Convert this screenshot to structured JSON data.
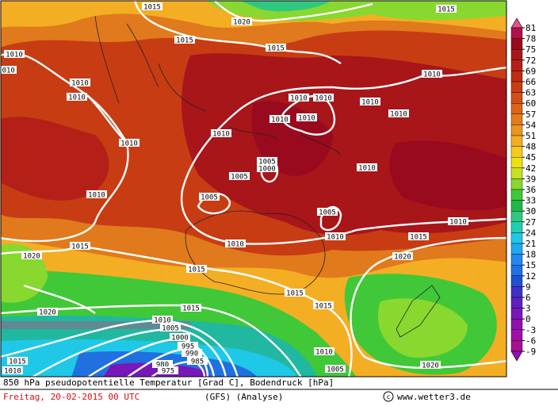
{
  "map": {
    "isobar_labels": [
      1015,
      1020,
      1015,
      1015,
      1015,
      1010,
      1010,
      1010,
      1010,
      1010,
      1010,
      1010,
      1010,
      1010,
      1010,
      1010,
      1010,
      1010,
      1005,
      1000,
      1005,
      1010,
      1005,
      1010,
      1005,
      1010,
      1010,
      1015,
      1015,
      1010,
      1020,
      1020,
      1015,
      1015,
      1015,
      1020,
      1015,
      1010,
      1005,
      1000,
      995,
      990,
      985,
      980,
      975,
      1015,
      1010,
      1010,
      1005,
      1020
    ],
    "colorbar_ticks": [
      81,
      78,
      75,
      72,
      69,
      66,
      63,
      60,
      57,
      54,
      51,
      48,
      45,
      42,
      39,
      36,
      33,
      30,
      27,
      24,
      21,
      18,
      15,
      12,
      9,
      6,
      3,
      0,
      -3,
      -6,
      -9
    ]
  },
  "caption": {
    "title": "850 hPa pseudopotentielle Temperatur [Grad C], Bodendruck [hPa]",
    "date": "Freitag, 20-02-2015  00 UTC",
    "model": "(GFS)  (Analyse)",
    "source": "www.wetter3.de"
  }
}
